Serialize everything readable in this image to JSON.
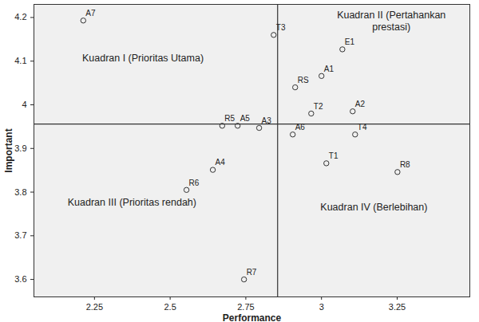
{
  "chart_data": {
    "type": "scatter",
    "x_label": "Performance",
    "y_label": "Important",
    "labels": [
      "A7",
      "T3",
      "E1",
      "A1",
      "RS",
      "T2",
      "A2",
      "R5",
      "A5",
      "A3",
      "A6",
      "T4",
      "T1",
      "R8",
      "A4",
      "R6",
      "R7"
    ],
    "x": [
      2.213,
      2.842,
      3.069,
      3.0,
      2.913,
      2.966,
      3.103,
      2.672,
      2.723,
      2.794,
      2.905,
      3.111,
      3.016,
      3.251,
      2.641,
      2.554,
      2.744
    ],
    "values": [
      4.193,
      4.16,
      4.127,
      4.066,
      4.04,
      3.98,
      3.985,
      3.952,
      3.952,
      3.947,
      3.932,
      3.932,
      3.866,
      3.846,
      3.851,
      3.805,
      3.6
    ],
    "reference_lines": {
      "x": 2.855,
      "y": 3.956
    },
    "annotations": [
      "Kuadran I (Prioritas Utama)",
      "Kuadran II (Pertahankan\nprestasi)",
      "Kuadran III (Prioritas rendah)",
      "Kuadran IV (Berlebihan)"
    ],
    "color": "#333333",
    "marker": "circle",
    "xlim": [
      2.05,
      3.49
    ],
    "ylim": [
      3.56,
      4.23
    ],
    "xticks": [
      2.25,
      2.5,
      2.75,
      3,
      3.25
    ],
    "yticks": [
      3.6,
      3.7,
      3.8,
      3.9,
      4,
      4.1,
      4.2
    ],
    "grid": false
  }
}
